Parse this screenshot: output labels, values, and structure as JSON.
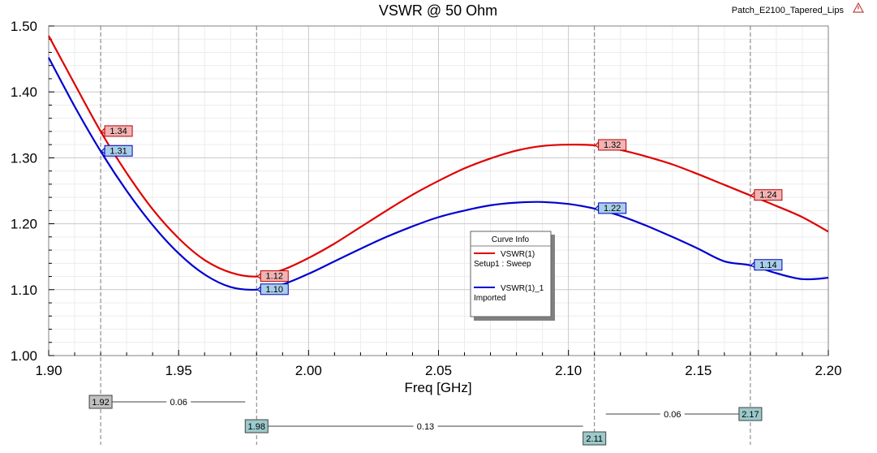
{
  "project_name": "Patch_E2100_Tapered_Lips",
  "chart_data": {
    "type": "line",
    "title": "VSWR @ 50 Ohm",
    "xlabel": "Freq [GHz]",
    "ylabel": "",
    "xlim": [
      1.9,
      2.2
    ],
    "ylim": [
      1.0,
      1.5
    ],
    "x_ticks": [
      "1.90",
      "1.95",
      "2.00",
      "2.05",
      "2.10",
      "2.15",
      "2.20"
    ],
    "y_ticks": [
      "1.00",
      "1.10",
      "1.20",
      "1.30",
      "1.40",
      "1.50"
    ],
    "grid": true,
    "x": [
      1.9,
      1.91,
      1.92,
      1.93,
      1.94,
      1.95,
      1.96,
      1.97,
      1.98,
      1.99,
      2.0,
      2.01,
      2.02,
      2.03,
      2.04,
      2.05,
      2.06,
      2.07,
      2.08,
      2.09,
      2.1,
      2.11,
      2.12,
      2.13,
      2.14,
      2.15,
      2.16,
      2.17,
      2.18,
      2.19,
      2.2
    ],
    "series": [
      {
        "name": "VSWR(1)",
        "source": "Setup1 : Sweep",
        "color": "#e00000",
        "values": [
          1.485,
          1.412,
          1.34,
          1.277,
          1.222,
          1.178,
          1.145,
          1.126,
          1.12,
          1.13,
          1.148,
          1.17,
          1.195,
          1.22,
          1.244,
          1.265,
          1.284,
          1.299,
          1.311,
          1.318,
          1.32,
          1.319,
          1.312,
          1.302,
          1.29,
          1.275,
          1.259,
          1.243,
          1.227,
          1.21,
          1.188
        ]
      },
      {
        "name": "VSWR(1)_1",
        "source": "Imported",
        "color": "#0000d0",
        "values": [
          1.452,
          1.378,
          1.31,
          1.25,
          1.198,
          1.155,
          1.123,
          1.104,
          1.1,
          1.108,
          1.124,
          1.143,
          1.162,
          1.18,
          1.196,
          1.21,
          1.22,
          1.228,
          1.232,
          1.233,
          1.23,
          1.223,
          1.212,
          1.197,
          1.18,
          1.162,
          1.143,
          1.137,
          1.125,
          1.116,
          1.118
        ]
      }
    ],
    "markers": [
      {
        "x": 1.92,
        "x_label": "1.92",
        "values": [
          "1.34",
          "1.31"
        ]
      },
      {
        "x": 1.98,
        "x_label": "1.98",
        "values": [
          "1.12",
          "1.10"
        ]
      },
      {
        "x": 2.11,
        "x_label": "2.11",
        "values": [
          "1.32",
          "1.22"
        ]
      },
      {
        "x": 2.17,
        "x_label": "2.17",
        "values": [
          "1.24",
          "1.14"
        ]
      }
    ],
    "deltas": [
      {
        "from": 1.92,
        "to": 1.98,
        "label": "0.06"
      },
      {
        "from": 1.98,
        "to": 2.11,
        "label": "0.13"
      },
      {
        "from": 2.11,
        "to": 2.17,
        "label": "0.06"
      }
    ],
    "legend": {
      "title": "Curve Info",
      "placement": "center-right",
      "entries": [
        {
          "name": "VSWR(1)",
          "source": "Setup1 : Sweep",
          "color": "#e00000"
        },
        {
          "name": "VSWR(1)_1",
          "source": "Imported",
          "color": "#0000d0"
        }
      ]
    }
  }
}
